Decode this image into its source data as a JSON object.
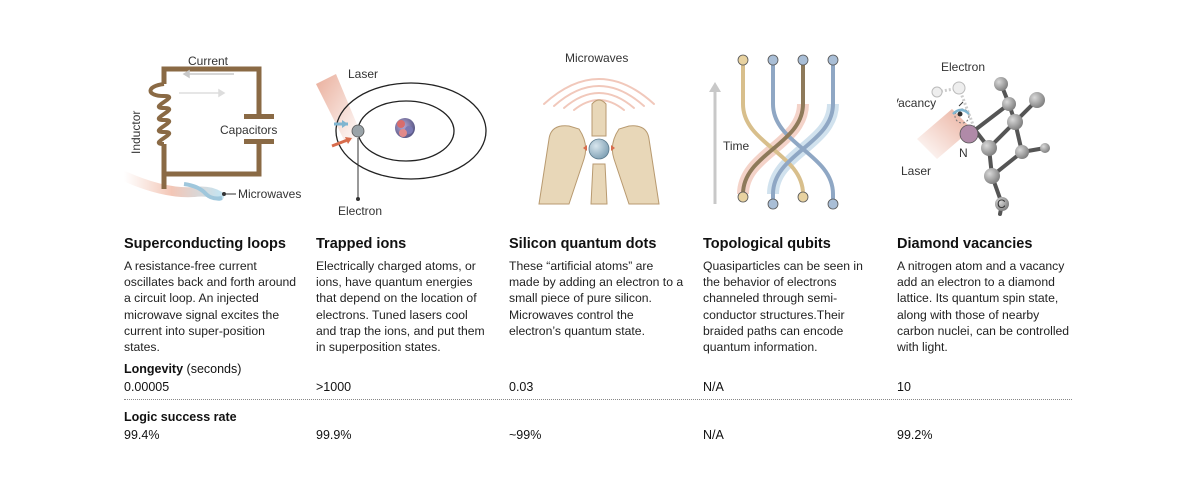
{
  "columns": [
    {
      "title": "Superconducting loops",
      "description": "A resistance-free current oscillates back and forth around a circuit loop. An injected microwave signal excites the current into super-position states.",
      "longevity": "0.00005",
      "success_rate": "99.4%",
      "labels": {
        "current": "Current",
        "inductor": "Inductor",
        "capacitors": "Capacitors",
        "microwaves": "Microwaves"
      }
    },
    {
      "title": "Trapped ions",
      "description": "Electrically charged atoms, or ions, have quantum energies that depend on the location of electrons. Tuned lasers cool and trap the ions, and put them in superposition states.",
      "longevity": ">1000",
      "success_rate": "99.9%",
      "labels": {
        "laser": "Laser",
        "electron": "Electron"
      }
    },
    {
      "title": "Silicon quantum dots",
      "description": "These “artificial atoms” are made by adding an electron to a small piece of pure silicon. Microwaves control the electron’s quantum state.",
      "longevity": "0.03",
      "success_rate": "~99%",
      "labels": {
        "microwaves": "Microwaves"
      }
    },
    {
      "title": "Topological qubits",
      "description": "Quasiparticles can be seen in the behavior of electrons channeled through semi-conductor structures.Their braided paths can encode quantum information.",
      "longevity": "N/A",
      "success_rate": "N/A",
      "labels": {
        "time": "Time"
      }
    },
    {
      "title": "Diamond vacancies",
      "description": "A nitrogen atom and a vacancy add an electron to a diamond lattice. Its quantum spin state, along with those of nearby carbon nuclei, can be controlled with light.",
      "longevity": "10",
      "success_rate": "99.2%",
      "labels": {
        "electron": "Electron",
        "vacancy": "Vacancy",
        "n": "N",
        "laser": "Laser",
        "c": "C"
      }
    }
  ],
  "rows": {
    "longevity_label": "Longevity",
    "longevity_unit": "(seconds)",
    "success_label": "Logic success rate"
  },
  "colors": {
    "circuit": "#8a6a45",
    "microwave_blue": "#9fc7dc",
    "laser_red": "#e6a08a",
    "silicon_tan": "#e8d7b8",
    "metal_gray": "#8e9498",
    "braid_tan": "#d8bf8c",
    "braid_blue": "#8fa7c4"
  }
}
